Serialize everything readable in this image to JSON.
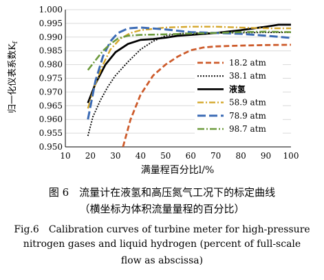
{
  "chart_data": {
    "type": "line",
    "xlabel": "满量程百分比l/%",
    "ylabel": "归一化仪表系数K",
    "ylabel_subscript": "f",
    "xlim": [
      10,
      100
    ],
    "ylim": [
      0.95,
      1.0
    ],
    "x_ticks": [
      "10",
      "20",
      "30",
      "40",
      "50",
      "60",
      "70",
      "80",
      "90",
      "100"
    ],
    "y_ticks": [
      "0.950",
      "0.955",
      "0.960",
      "0.965",
      "0.970",
      "0.975",
      "0.980",
      "0.985",
      "0.990",
      "0.995",
      "1.000"
    ],
    "legend_position": "right",
    "series": [
      {
        "name": "18.2 atm",
        "color": "#cd5b2b",
        "dash": "8,4",
        "width": 2.8,
        "points": [
          [
            33,
            0.95
          ],
          [
            36,
            0.96
          ],
          [
            40,
            0.969
          ],
          [
            45,
            0.976
          ],
          [
            50,
            0.98
          ],
          [
            55,
            0.983
          ],
          [
            60,
            0.9852
          ],
          [
            65,
            0.9862
          ],
          [
            70,
            0.9866
          ],
          [
            80,
            0.9869
          ],
          [
            90,
            0.9871
          ],
          [
            100,
            0.9872
          ]
        ]
      },
      {
        "name": "38.1 atm",
        "color": "#111111",
        "dash": "2,2",
        "width": 2.0,
        "points": [
          [
            19,
            0.954
          ],
          [
            21,
            0.961
          ],
          [
            24,
            0.967
          ],
          [
            27,
            0.972
          ],
          [
            30,
            0.976
          ],
          [
            35,
            0.981
          ],
          [
            40,
            0.9855
          ],
          [
            45,
            0.9885
          ],
          [
            50,
            0.9905
          ],
          [
            55,
            0.9912
          ],
          [
            60,
            0.9915
          ],
          [
            70,
            0.9915
          ],
          [
            80,
            0.9916
          ],
          [
            90,
            0.9917
          ],
          [
            100,
            0.9917
          ]
        ]
      },
      {
        "name": "液氢",
        "color": "#000000",
        "dash": "",
        "width": 2.8,
        "points": [
          [
            19,
            0.966
          ],
          [
            22,
            0.973
          ],
          [
            26,
            0.98
          ],
          [
            30,
            0.9845
          ],
          [
            35,
            0.9875
          ],
          [
            40,
            0.989
          ],
          [
            45,
            0.9893
          ],
          [
            50,
            0.9898
          ],
          [
            55,
            0.9905
          ],
          [
            60,
            0.9908
          ],
          [
            70,
            0.9915
          ],
          [
            80,
            0.9925
          ],
          [
            90,
            0.9938
          ],
          [
            95,
            0.9945
          ],
          [
            100,
            0.9945
          ]
        ]
      },
      {
        "name": "58.9 atm",
        "color": "#d4a62a",
        "dash": "9,3,2,3",
        "width": 2.4,
        "points": [
          [
            19,
            0.964
          ],
          [
            22,
            0.973
          ],
          [
            25,
            0.98
          ],
          [
            28,
            0.9855
          ],
          [
            32,
            0.9895
          ],
          [
            36,
            0.9915
          ],
          [
            40,
            0.9925
          ],
          [
            50,
            0.9935
          ],
          [
            60,
            0.9938
          ],
          [
            70,
            0.9938
          ],
          [
            80,
            0.9935
          ],
          [
            90,
            0.9932
          ],
          [
            100,
            0.9932
          ]
        ]
      },
      {
        "name": "78.9 atm",
        "color": "#3b6bb5",
        "dash": "12,5",
        "width": 3.0,
        "points": [
          [
            19,
            0.96
          ],
          [
            22,
            0.974
          ],
          [
            25,
            0.983
          ],
          [
            28,
            0.9885
          ],
          [
            31,
            0.9915
          ],
          [
            35,
            0.9932
          ],
          [
            40,
            0.9935
          ],
          [
            50,
            0.9928
          ],
          [
            60,
            0.9918
          ],
          [
            70,
            0.9915
          ],
          [
            80,
            0.9912
          ],
          [
            90,
            0.9905
          ],
          [
            100,
            0.9897
          ]
        ]
      },
      {
        "name": "98.7 atm",
        "color": "#6c9a3c",
        "dash": "10,3,2,3",
        "width": 2.6,
        "points": [
          [
            19,
            0.978
          ],
          [
            22,
            0.9815
          ],
          [
            25,
            0.985
          ],
          [
            28,
            0.9875
          ],
          [
            31,
            0.9895
          ],
          [
            35,
            0.9905
          ],
          [
            40,
            0.9908
          ],
          [
            50,
            0.991
          ],
          [
            60,
            0.9913
          ],
          [
            70,
            0.9915
          ],
          [
            80,
            0.9918
          ],
          [
            90,
            0.992
          ],
          [
            100,
            0.9918
          ]
        ]
      }
    ]
  },
  "caption": {
    "zh_line1": "图 6　流量计在液氢和高压氮气工况下的标定曲线",
    "zh_line2": "（横坐标为体积流量量程的百分比）",
    "en_line1": "Fig.6　Calibration curves of turbine meter for high-pressure",
    "en_line2": "nitrogen gases and liquid hydrogen (percent of full-scale",
    "en_line3": "flow as abscissa)"
  }
}
